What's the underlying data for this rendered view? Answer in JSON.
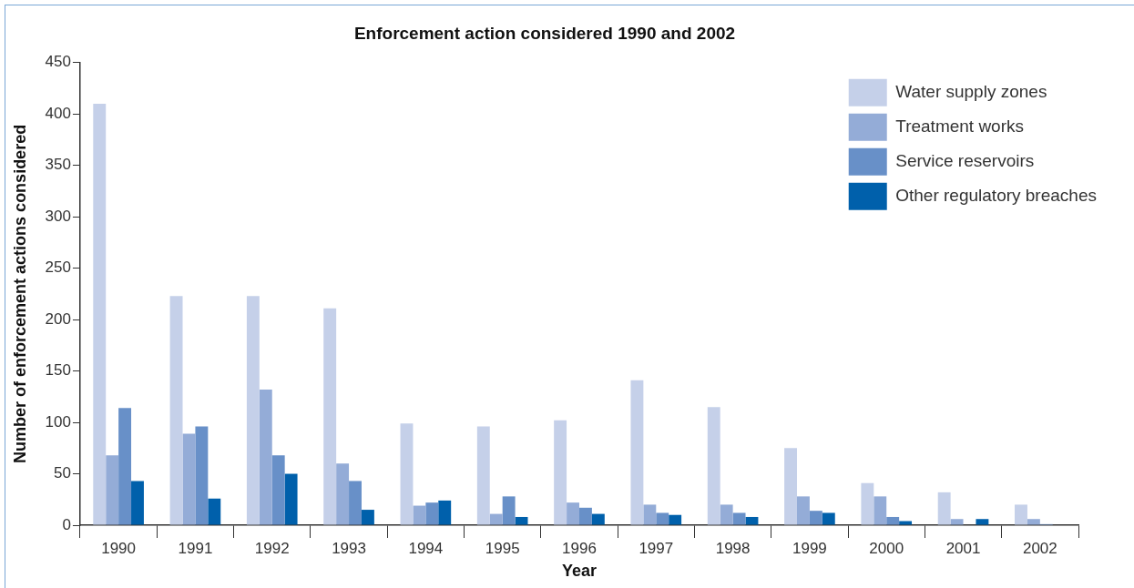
{
  "chart_data": {
    "type": "bar",
    "title": "Enforcement action considered 1990 and 2002",
    "xlabel": "Year",
    "ylabel": "Number of enforcement actions considered",
    "categories": [
      "1990",
      "1991",
      "1992",
      "1993",
      "1994",
      "1995",
      "1996",
      "1997",
      "1998",
      "1999",
      "2000",
      "2001",
      "2002"
    ],
    "series": [
      {
        "name": "Water supply zones",
        "color": "#c5d0e9",
        "values": [
          410,
          223,
          223,
          211,
          99,
          96,
          102,
          141,
          115,
          75,
          41,
          32,
          20
        ]
      },
      {
        "name": "Treatment works",
        "color": "#94acd7",
        "values": [
          68,
          89,
          132,
          60,
          19,
          11,
          22,
          20,
          20,
          28,
          28,
          6,
          6
        ]
      },
      {
        "name": "Service reservoirs",
        "color": "#6890c8",
        "values": [
          114,
          96,
          68,
          43,
          22,
          28,
          17,
          12,
          12,
          14,
          8,
          0,
          1
        ]
      },
      {
        "name": "Other regulatory breaches",
        "color": "#0060ab",
        "values": [
          43,
          26,
          50,
          15,
          24,
          8,
          11,
          10,
          8,
          12,
          4,
          6,
          0
        ]
      }
    ],
    "ylim": [
      0,
      450
    ],
    "yticks": [
      0,
      50,
      100,
      150,
      200,
      250,
      300,
      350,
      400,
      450
    ],
    "grid": false,
    "legend": "top right"
  }
}
